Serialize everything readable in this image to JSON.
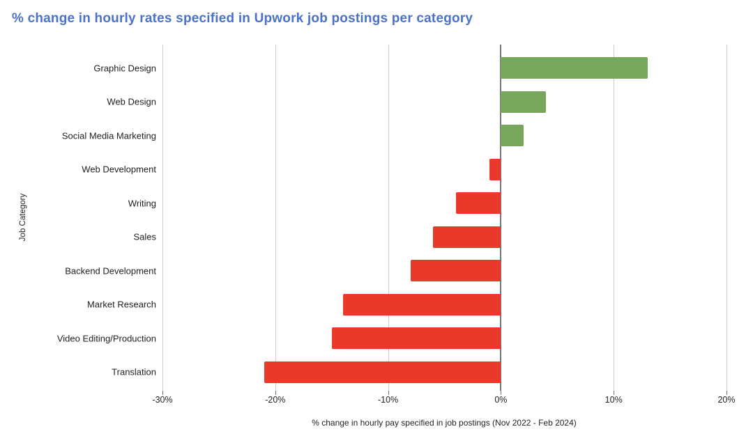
{
  "chart": {
    "title": "% change in hourly rates specified in Upwork job postings per category",
    "x_axis_title": "% change in hourly pay specified in job postings (Nov 2022 - Feb 2024)",
    "y_axis_title": "Job Category"
  },
  "chart_data": {
    "type": "bar",
    "orientation": "horizontal",
    "title": "% change in hourly rates specified in Upwork job postings per category",
    "xlabel": "% change in hourly pay specified in job postings (Nov 2022 - Feb 2024)",
    "ylabel": "Job Category",
    "categories": [
      "Graphic Design",
      "Web Design",
      "Social Media Marketing",
      "Web Development",
      "Writing",
      "Sales",
      "Backend Development",
      "Market Research",
      "Video Editing/Production",
      "Translation"
    ],
    "values": [
      13,
      4,
      2,
      -1,
      -4,
      -6,
      -8,
      -14,
      -15,
      -21
    ],
    "xlim": [
      -30,
      20
    ],
    "x_tick_values": [
      -30,
      -20,
      -10,
      0,
      10,
      20
    ],
    "x_tick_labels": [
      "-30%",
      "-20%",
      "-10%",
      "0%",
      "10%",
      "20%"
    ],
    "grid": true,
    "legend": "none",
    "colors": {
      "positive": "#77a75c",
      "negative": "#e8392b",
      "gridline": "#cccccc",
      "zero_line": "#757575",
      "tick": "#757575",
      "title": "#4a72c9",
      "axis_text": "#222222",
      "category_text": "#212121",
      "background": "#ffffff"
    }
  }
}
